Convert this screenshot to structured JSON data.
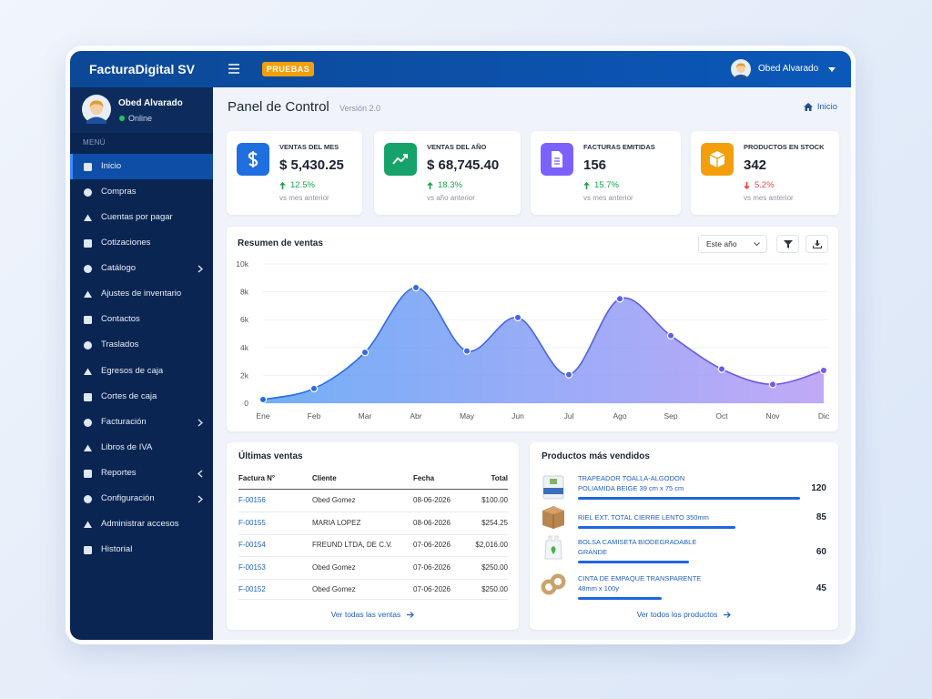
{
  "topbar": {
    "brand": "FacturaDigital SV",
    "badge": "PRUEBAS",
    "user": "Obed Alvarado"
  },
  "sidebar": {
    "user": "Obed Alvarado",
    "status": "Online",
    "section": "MENÚ",
    "items": [
      "Inicio",
      "Compras",
      "Cuentas por pagar",
      "Cotizaciones",
      "Catálogo",
      "Ajustes de inventario",
      "Contactos",
      "Traslados",
      "Egresos de caja",
      "Cortes de caja",
      "Facturación",
      "Libros de IVA",
      "Reportes",
      "Configuración",
      "Administrar accesos",
      "Historial"
    ]
  },
  "header": {
    "title": "Panel de Control",
    "version": "Versión 2.0",
    "breadcrumb": "Inicio"
  },
  "kpis": [
    {
      "label": "VENTAS DEL MES",
      "value": "$ 5,430.25",
      "change": "12.5%",
      "note": "vs mes anterior"
    },
    {
      "label": "VENTAS DEL AÑO",
      "value": "$ 68,745.40",
      "change": "18.3%",
      "note": "vs año anterior"
    },
    {
      "label": "FACTURAS EMITIDAS",
      "value": 156,
      "change": "15.7%",
      "note": "vs mes anterior"
    },
    {
      "label": "PRODUCTOS EN STOCK",
      "value": 342,
      "change": "5.2%",
      "note": "vs mes anterior"
    }
  ],
  "chart_data": {
    "type": "area",
    "title": "Resumen de ventas",
    "filter": "Este año",
    "categories": [
      "Ene",
      "Feb",
      "Mar",
      "Abr",
      "May",
      "Jun",
      "Jul",
      "Ago",
      "Sep",
      "Oct",
      "Nov",
      "Dic"
    ],
    "values": [
      260,
      1050,
      3650,
      8300,
      3750,
      6150,
      2050,
      7500,
      4850,
      2450,
      1350,
      2350
    ],
    "ylim": [
      0,
      10000
    ],
    "yticks": [
      0,
      {
        "value": 2000,
        "label": "2k"
      },
      {
        "value": 4000,
        "label": "4k"
      },
      {
        "value": 6000,
        "label": "6k"
      },
      {
        "value": 8000,
        "label": "8k"
      },
      {
        "value": 10000,
        "label": "10k"
      }
    ],
    "grid": true
  },
  "sales": {
    "title": "Últimas ventas",
    "columns": [
      "Factura N°",
      "Cliente",
      "Fecha",
      "Total"
    ],
    "rows": [
      [
        "F-00156",
        "Obed Gomez",
        "08-06-2026",
        "$100.00"
      ],
      [
        "F-00155",
        "MARIA LOPEZ",
        "08-06-2026",
        "$254.25"
      ],
      [
        "F-00154",
        "FREUND LTDA, DE C.V.",
        "07-06-2026",
        "$2,016.00"
      ],
      [
        "F-00153",
        "Obed Gomez",
        "07-06-2026",
        "$250.00"
      ],
      [
        "F-00152",
        "Obed Gomez",
        "07-06-2026",
        "$250.00"
      ]
    ],
    "link": "Ver todas las ventas"
  },
  "products": {
    "title": "Productos más vendidos",
    "items": [
      {
        "lines": [
          "TRAPEADOR TOALLA-ALGODON",
          "POLIAMIDA BEIGE 39 cm x 75 cm"
        ],
        "qty": 120
      },
      {
        "lines": [
          "RIEL EXT. TOTAL CIERRE LENTO 350mm"
        ],
        "qty": 85
      },
      {
        "lines": [
          "BOLSA CAMISETA BIODEGRADABLE",
          "GRANDE"
        ],
        "qty": 60
      },
      {
        "lines": [
          "CINTA DE EMPAQUE TRANSPARENTE",
          "48mm x 100y"
        ],
        "qty": 45
      }
    ],
    "link": "Ver todos los productos"
  }
}
